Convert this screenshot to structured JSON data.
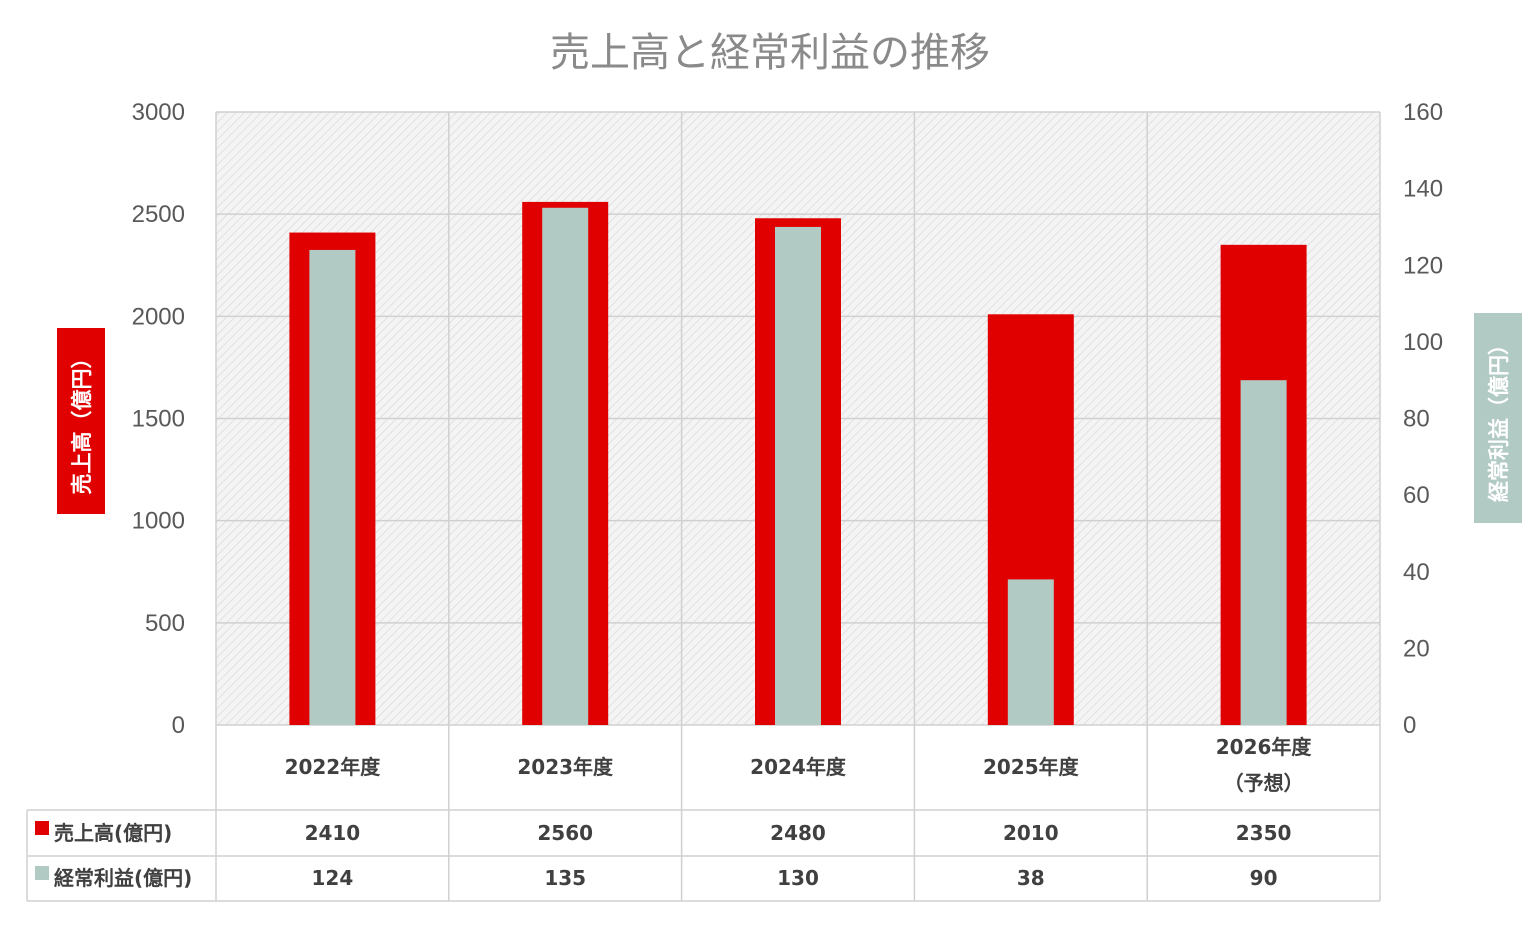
{
  "chart_data": {
    "type": "bar",
    "title": "売上高と経常利益の推移",
    "categories": [
      "2022年度",
      "2023年度",
      "2024年度",
      "2025年度",
      "2026年度\n（予想）"
    ],
    "series": [
      {
        "name": "売上高(億円)",
        "axis": "left",
        "color": "#e00000",
        "values": [
          2410,
          2560,
          2480,
          2010,
          2350
        ]
      },
      {
        "name": "経常利益(億円)",
        "axis": "right",
        "color": "#b2cac4",
        "values": [
          124,
          135,
          130,
          38,
          90
        ]
      }
    ],
    "y_left": {
      "label": "売上高（億円）",
      "ylim": [
        0,
        3000
      ],
      "ticks": [
        "0",
        "500",
        "1000",
        "1500",
        "2000",
        "2500",
        "3000"
      ]
    },
    "y_right": {
      "label": "経常利益（億円）",
      "ylim": [
        0,
        160
      ],
      "ticks": [
        "0",
        "20",
        "40",
        "60",
        "80",
        "100",
        "120",
        "140",
        "160"
      ]
    },
    "grid": true,
    "legend": "data-table",
    "data_table": true
  }
}
